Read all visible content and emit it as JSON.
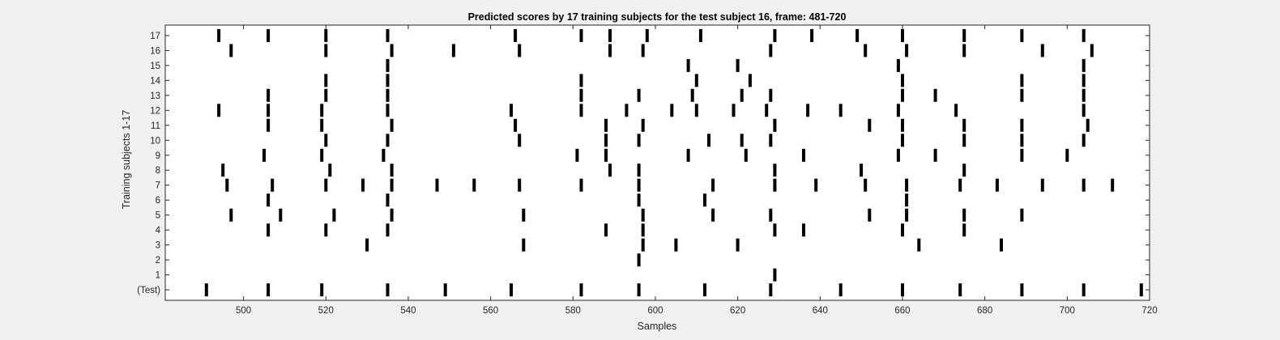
{
  "chart_data": {
    "type": "raster",
    "title": "Predicted scores by 17 training subjects for the test subject 16, frame: 481-720",
    "xlabel": "Samples",
    "ylabel": "Training subjects 1-17",
    "xlim": [
      481,
      720
    ],
    "xticks": [
      500,
      520,
      540,
      560,
      580,
      600,
      620,
      640,
      660,
      680,
      700,
      720
    ],
    "ytick_labels": [
      "(Test)",
      "1",
      "2",
      "3",
      "4",
      "5",
      "6",
      "7",
      "8",
      "9",
      "10",
      "11",
      "12",
      "13",
      "14",
      "15",
      "16",
      "17"
    ],
    "grid": false,
    "colors": {
      "background": "#f0f0f0",
      "plot_area": "#ffffff",
      "marks": "#000000"
    },
    "rows": [
      {
        "label": "(Test)",
        "events": [
          491,
          506,
          519,
          535,
          549,
          565,
          582,
          596,
          612,
          628,
          645,
          660,
          674,
          689,
          704,
          718
        ]
      },
      {
        "label": "1",
        "events": [
          629
        ]
      },
      {
        "label": "2",
        "events": [
          596
        ]
      },
      {
        "label": "3",
        "events": [
          530,
          568,
          597,
          605,
          620,
          664,
          684
        ]
      },
      {
        "label": "4",
        "events": [
          506,
          520,
          535,
          588,
          597,
          629,
          636,
          660,
          675
        ]
      },
      {
        "label": "5",
        "events": [
          497,
          509,
          522,
          536,
          568,
          597,
          614,
          628,
          652,
          661,
          675,
          689
        ]
      },
      {
        "label": "6",
        "events": [
          506,
          535,
          596,
          612,
          661
        ]
      },
      {
        "label": "7",
        "events": [
          496,
          507,
          520,
          529,
          536,
          547,
          556,
          567,
          582,
          596,
          614,
          629,
          639,
          651,
          661,
          674,
          683,
          694,
          704,
          711
        ]
      },
      {
        "label": "8",
        "events": [
          495,
          521,
          536,
          589,
          596,
          629,
          650,
          675
        ]
      },
      {
        "label": "9",
        "events": [
          505,
          519,
          534,
          581,
          588,
          608,
          622,
          636,
          659,
          668,
          689,
          700
        ]
      },
      {
        "label": "10",
        "events": [
          520,
          535,
          567,
          588,
          596,
          613,
          621,
          628,
          660,
          675,
          689,
          704
        ]
      },
      {
        "label": "11",
        "events": [
          506,
          519,
          536,
          566,
          588,
          597,
          629,
          652,
          660,
          675,
          689,
          705
        ]
      },
      {
        "label": "12",
        "events": [
          494,
          506,
          519,
          535,
          565,
          582,
          593,
          604,
          610,
          619,
          627,
          637,
          645,
          659,
          673,
          704
        ]
      },
      {
        "label": "13",
        "events": [
          506,
          520,
          535,
          582,
          596,
          609,
          621,
          628,
          660,
          668,
          689,
          704
        ]
      },
      {
        "label": "14",
        "events": [
          520,
          535,
          582,
          610,
          623,
          660,
          689,
          704
        ]
      },
      {
        "label": "15",
        "events": [
          535,
          608,
          620,
          659,
          704
        ]
      },
      {
        "label": "16",
        "events": [
          497,
          520,
          536,
          551,
          567,
          589,
          597,
          628,
          651,
          661,
          675,
          694,
          706
        ]
      },
      {
        "label": "17",
        "events": [
          494,
          506,
          520,
          535,
          566,
          582,
          589,
          598,
          611,
          629,
          638,
          649,
          660,
          675,
          689,
          704
        ]
      }
    ]
  }
}
